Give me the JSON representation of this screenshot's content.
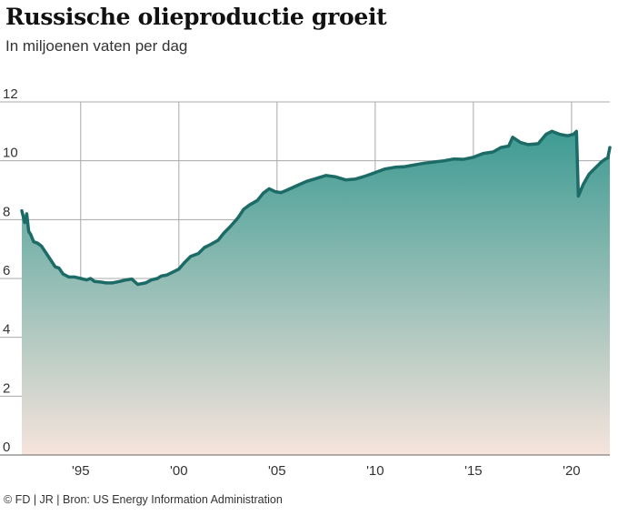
{
  "title": "Russische olieproductie groeit",
  "subtitle": "In miljoenen vaten per dag",
  "source": "© FD | JR | Bron: US Energy Information Administration",
  "colors": {
    "line": "#1d6b66",
    "fill_top": "#3d9b93",
    "fill_bottom": "#f6e4dc",
    "grid": "#a8a8a8",
    "axis": "#666666"
  },
  "chart_data": {
    "type": "area",
    "title": "Russische olieproductie groeit",
    "ylabel": "In miljoenen vaten per dag",
    "xlabel": "",
    "xlim": [
      1992.0,
      2021.95
    ],
    "ylim": [
      0,
      12
    ],
    "grid": true,
    "x_ticks": [
      1995,
      2000,
      2005,
      2010,
      2015,
      2020
    ],
    "x_tick_labels": [
      "'95",
      "'00",
      "'05",
      "'10",
      "'15",
      "'20"
    ],
    "y_ticks": [
      0,
      2,
      4,
      6,
      8,
      10,
      12
    ],
    "y_tick_labels": [
      "0",
      "2",
      "4",
      "6",
      "8",
      "10",
      "12"
    ],
    "series": [
      {
        "name": "Russische olieproductie",
        "x": [
          1992.0,
          1992.15,
          1992.25,
          1992.35,
          1992.45,
          1992.6,
          1992.8,
          1993.0,
          1993.3,
          1993.5,
          1993.7,
          1993.9,
          1994.1,
          1994.4,
          1994.7,
          1995.0,
          1995.3,
          1995.5,
          1995.7,
          1996.0,
          1996.3,
          1996.6,
          1997.0,
          1997.3,
          1997.6,
          1997.9,
          1998.3,
          1998.6,
          1998.9,
          1999.1,
          1999.4,
          1999.7,
          2000.0,
          2000.3,
          2000.6,
          2001.0,
          2001.3,
          2001.6,
          2002.0,
          2002.3,
          2002.6,
          2003.0,
          2003.3,
          2003.6,
          2004.0,
          2004.3,
          2004.6,
          2004.9,
          2005.2,
          2005.5,
          2006.0,
          2006.5,
          2007.0,
          2007.5,
          2008.0,
          2008.5,
          2009.0,
          2009.5,
          2010.0,
          2010.5,
          2011.0,
          2011.5,
          2012.0,
          2012.5,
          2013.0,
          2013.5,
          2014.0,
          2014.5,
          2015.0,
          2015.5,
          2016.0,
          2016.4,
          2016.8,
          2017.0,
          2017.4,
          2017.8,
          2018.3,
          2018.7,
          2019.0,
          2019.4,
          2019.8,
          2020.1,
          2020.25,
          2020.35,
          2020.6,
          2020.9,
          2021.2,
          2021.5,
          2021.7,
          2021.85,
          2021.95
        ],
        "values": [
          8.3,
          7.9,
          8.2,
          7.6,
          7.5,
          7.25,
          7.2,
          7.1,
          6.8,
          6.6,
          6.4,
          6.35,
          6.15,
          6.05,
          6.05,
          6.0,
          5.95,
          6.0,
          5.9,
          5.88,
          5.85,
          5.85,
          5.9,
          5.95,
          5.98,
          5.8,
          5.85,
          5.95,
          6.0,
          6.08,
          6.12,
          6.22,
          6.32,
          6.55,
          6.75,
          6.85,
          7.05,
          7.15,
          7.3,
          7.55,
          7.75,
          8.05,
          8.35,
          8.5,
          8.65,
          8.9,
          9.05,
          8.95,
          8.92,
          9.0,
          9.15,
          9.3,
          9.4,
          9.5,
          9.45,
          9.35,
          9.38,
          9.48,
          9.6,
          9.72,
          9.78,
          9.8,
          9.86,
          9.92,
          9.96,
          10.0,
          10.06,
          10.05,
          10.12,
          10.25,
          10.3,
          10.45,
          10.5,
          10.8,
          10.62,
          10.55,
          10.58,
          10.9,
          11.0,
          10.9,
          10.85,
          10.9,
          11.0,
          8.8,
          9.2,
          9.55,
          9.75,
          9.95,
          10.05,
          10.1,
          10.45
        ]
      }
    ]
  }
}
